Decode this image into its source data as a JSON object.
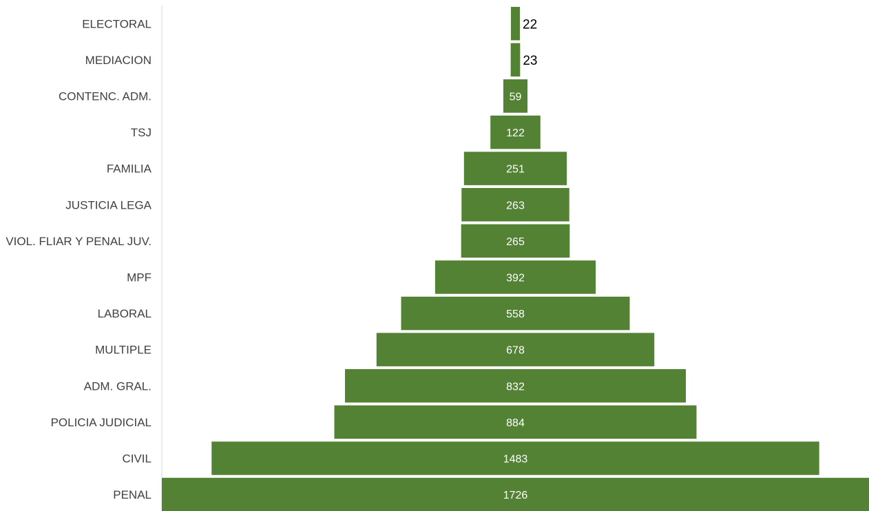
{
  "chart_data": {
    "type": "bar",
    "orientation": "horizontal",
    "style": "funnel",
    "categories": [
      "ELECTORAL",
      "MEDIACION",
      "CONTENC. ADM.",
      "TSJ",
      "FAMILIA",
      "JUSTICIA LEGA",
      "VIOL. FLIAR Y PENAL JUV.",
      "MPF",
      "LABORAL",
      "MULTIPLE",
      "ADM. GRAL.",
      "POLICIA JUDICIAL",
      "CIVIL",
      "PENAL"
    ],
    "values": [
      22,
      23,
      59,
      122,
      251,
      263,
      265,
      392,
      558,
      678,
      832,
      884,
      1483,
      1726
    ],
    "value_labels": [
      "22",
      "23",
      "59",
      "122",
      "251",
      "263",
      "265",
      "392",
      "558",
      "678",
      "832",
      "884",
      "1483",
      "1726"
    ],
    "bar_color": "#548235",
    "title": "",
    "xlabel": "",
    "ylabel": "",
    "grid": false,
    "legend": "none"
  }
}
